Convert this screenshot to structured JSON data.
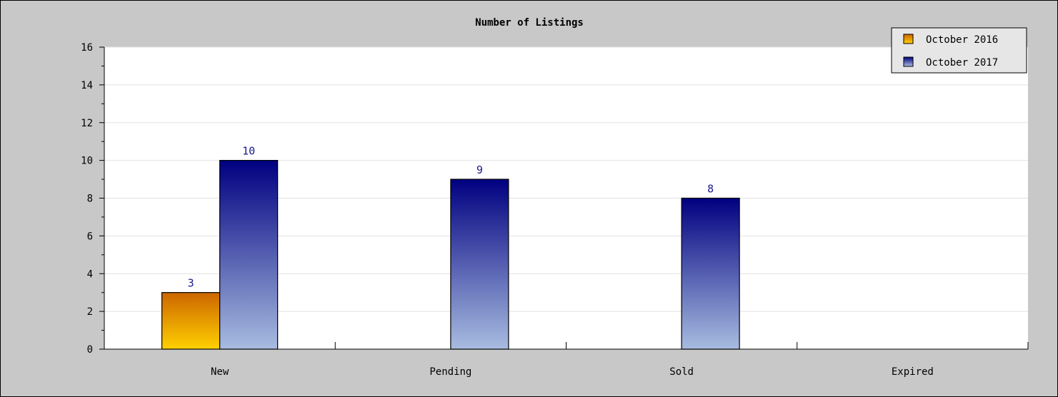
{
  "chart_data": {
    "type": "bar",
    "title": "Number of Listings",
    "xlabel": "",
    "ylabel": "",
    "categories": [
      "New",
      "Pending",
      "Sold",
      "Expired"
    ],
    "series": [
      {
        "name": "October 2016",
        "values": [
          3,
          null,
          null,
          null
        ],
        "color_top": "#cc6600",
        "color_bottom": "#ffd000"
      },
      {
        "name": "October 2017",
        "values": [
          10,
          9,
          8,
          null
        ],
        "color_top": "#000080",
        "color_bottom": "#a8bce0"
      }
    ],
    "ylim": [
      0,
      16
    ],
    "yticks": [
      0,
      2,
      4,
      6,
      8,
      10,
      12,
      14,
      16
    ],
    "grid": true,
    "legend_position": "top-right",
    "value_label_color": "#1a1a8c",
    "plot_background": "#ffffff",
    "frame_background": "#c8c8c8"
  }
}
